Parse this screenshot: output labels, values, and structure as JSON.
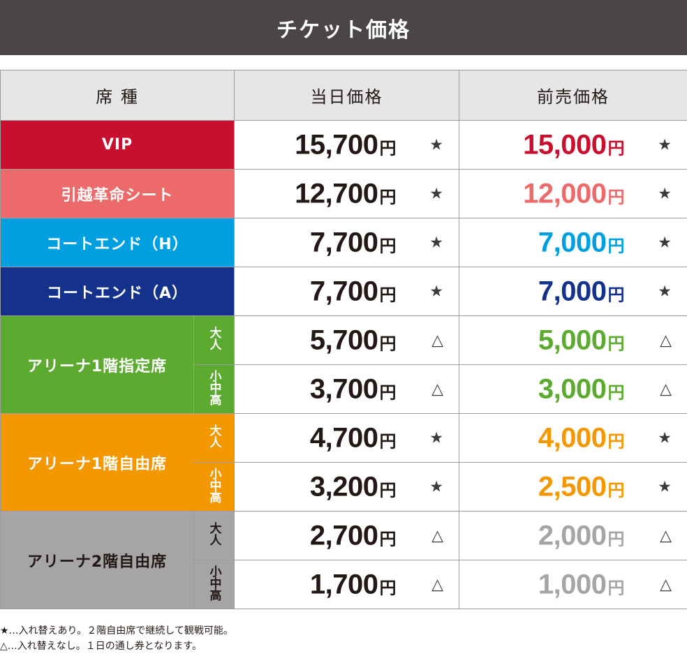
{
  "title": "チケット価格",
  "headers": {
    "seat": "席 種",
    "day_of": "当日価格",
    "advance": "前売価格"
  },
  "colors": {
    "vip": "#c8102e",
    "hiko": "#ec6a6a",
    "court_h": "#00a0e0",
    "court_a": "#14328c",
    "arena1_reserved": "#5caa2f",
    "arena1_free": "#f39800",
    "arena2_free": "#a5a5a5",
    "dark_text": "#231815"
  },
  "rows": [
    {
      "seat": "VIP",
      "sub": "",
      "day_price": "15,700",
      "day_mark": "★",
      "adv_price": "15,000",
      "adv_mark": "★"
    },
    {
      "seat": "引越革命シート",
      "sub": "",
      "day_price": "12,700",
      "day_mark": "★",
      "adv_price": "12,000",
      "adv_mark": "★"
    },
    {
      "seat": "コートエンド（H）",
      "sub": "",
      "day_price": "7,700",
      "day_mark": "★",
      "adv_price": "7,000",
      "adv_mark": "★"
    },
    {
      "seat": "コートエンド（A）",
      "sub": "",
      "day_price": "7,700",
      "day_mark": "★",
      "adv_price": "7,000",
      "adv_mark": "★"
    },
    {
      "seat": "アリーナ1階指定席",
      "sub": "大人",
      "day_price": "5,700",
      "day_mark": "△",
      "adv_price": "5,000",
      "adv_mark": "△"
    },
    {
      "seat": "",
      "sub": "小中高",
      "day_price": "3,700",
      "day_mark": "△",
      "adv_price": "3,000",
      "adv_mark": "△"
    },
    {
      "seat": "アリーナ1階自由席",
      "sub": "大人",
      "day_price": "4,700",
      "day_mark": "★",
      "adv_price": "4,000",
      "adv_mark": "★"
    },
    {
      "seat": "",
      "sub": "小中高",
      "day_price": "3,200",
      "day_mark": "★",
      "adv_price": "2,500",
      "adv_mark": "★"
    },
    {
      "seat": "アリーナ2階自由席",
      "sub": "大人",
      "day_price": "2,700",
      "day_mark": "△",
      "adv_price": "2,000",
      "adv_mark": "△"
    },
    {
      "seat": "",
      "sub": "小中高",
      "day_price": "1,700",
      "day_mark": "△",
      "adv_price": "1,000",
      "adv_mark": "△"
    }
  ],
  "yen": "円",
  "notes": [
    "★…入れ替えあり。２階自由席で継続して観戦可能。",
    "△…入れ替えなし。１日の通し券となります。"
  ]
}
